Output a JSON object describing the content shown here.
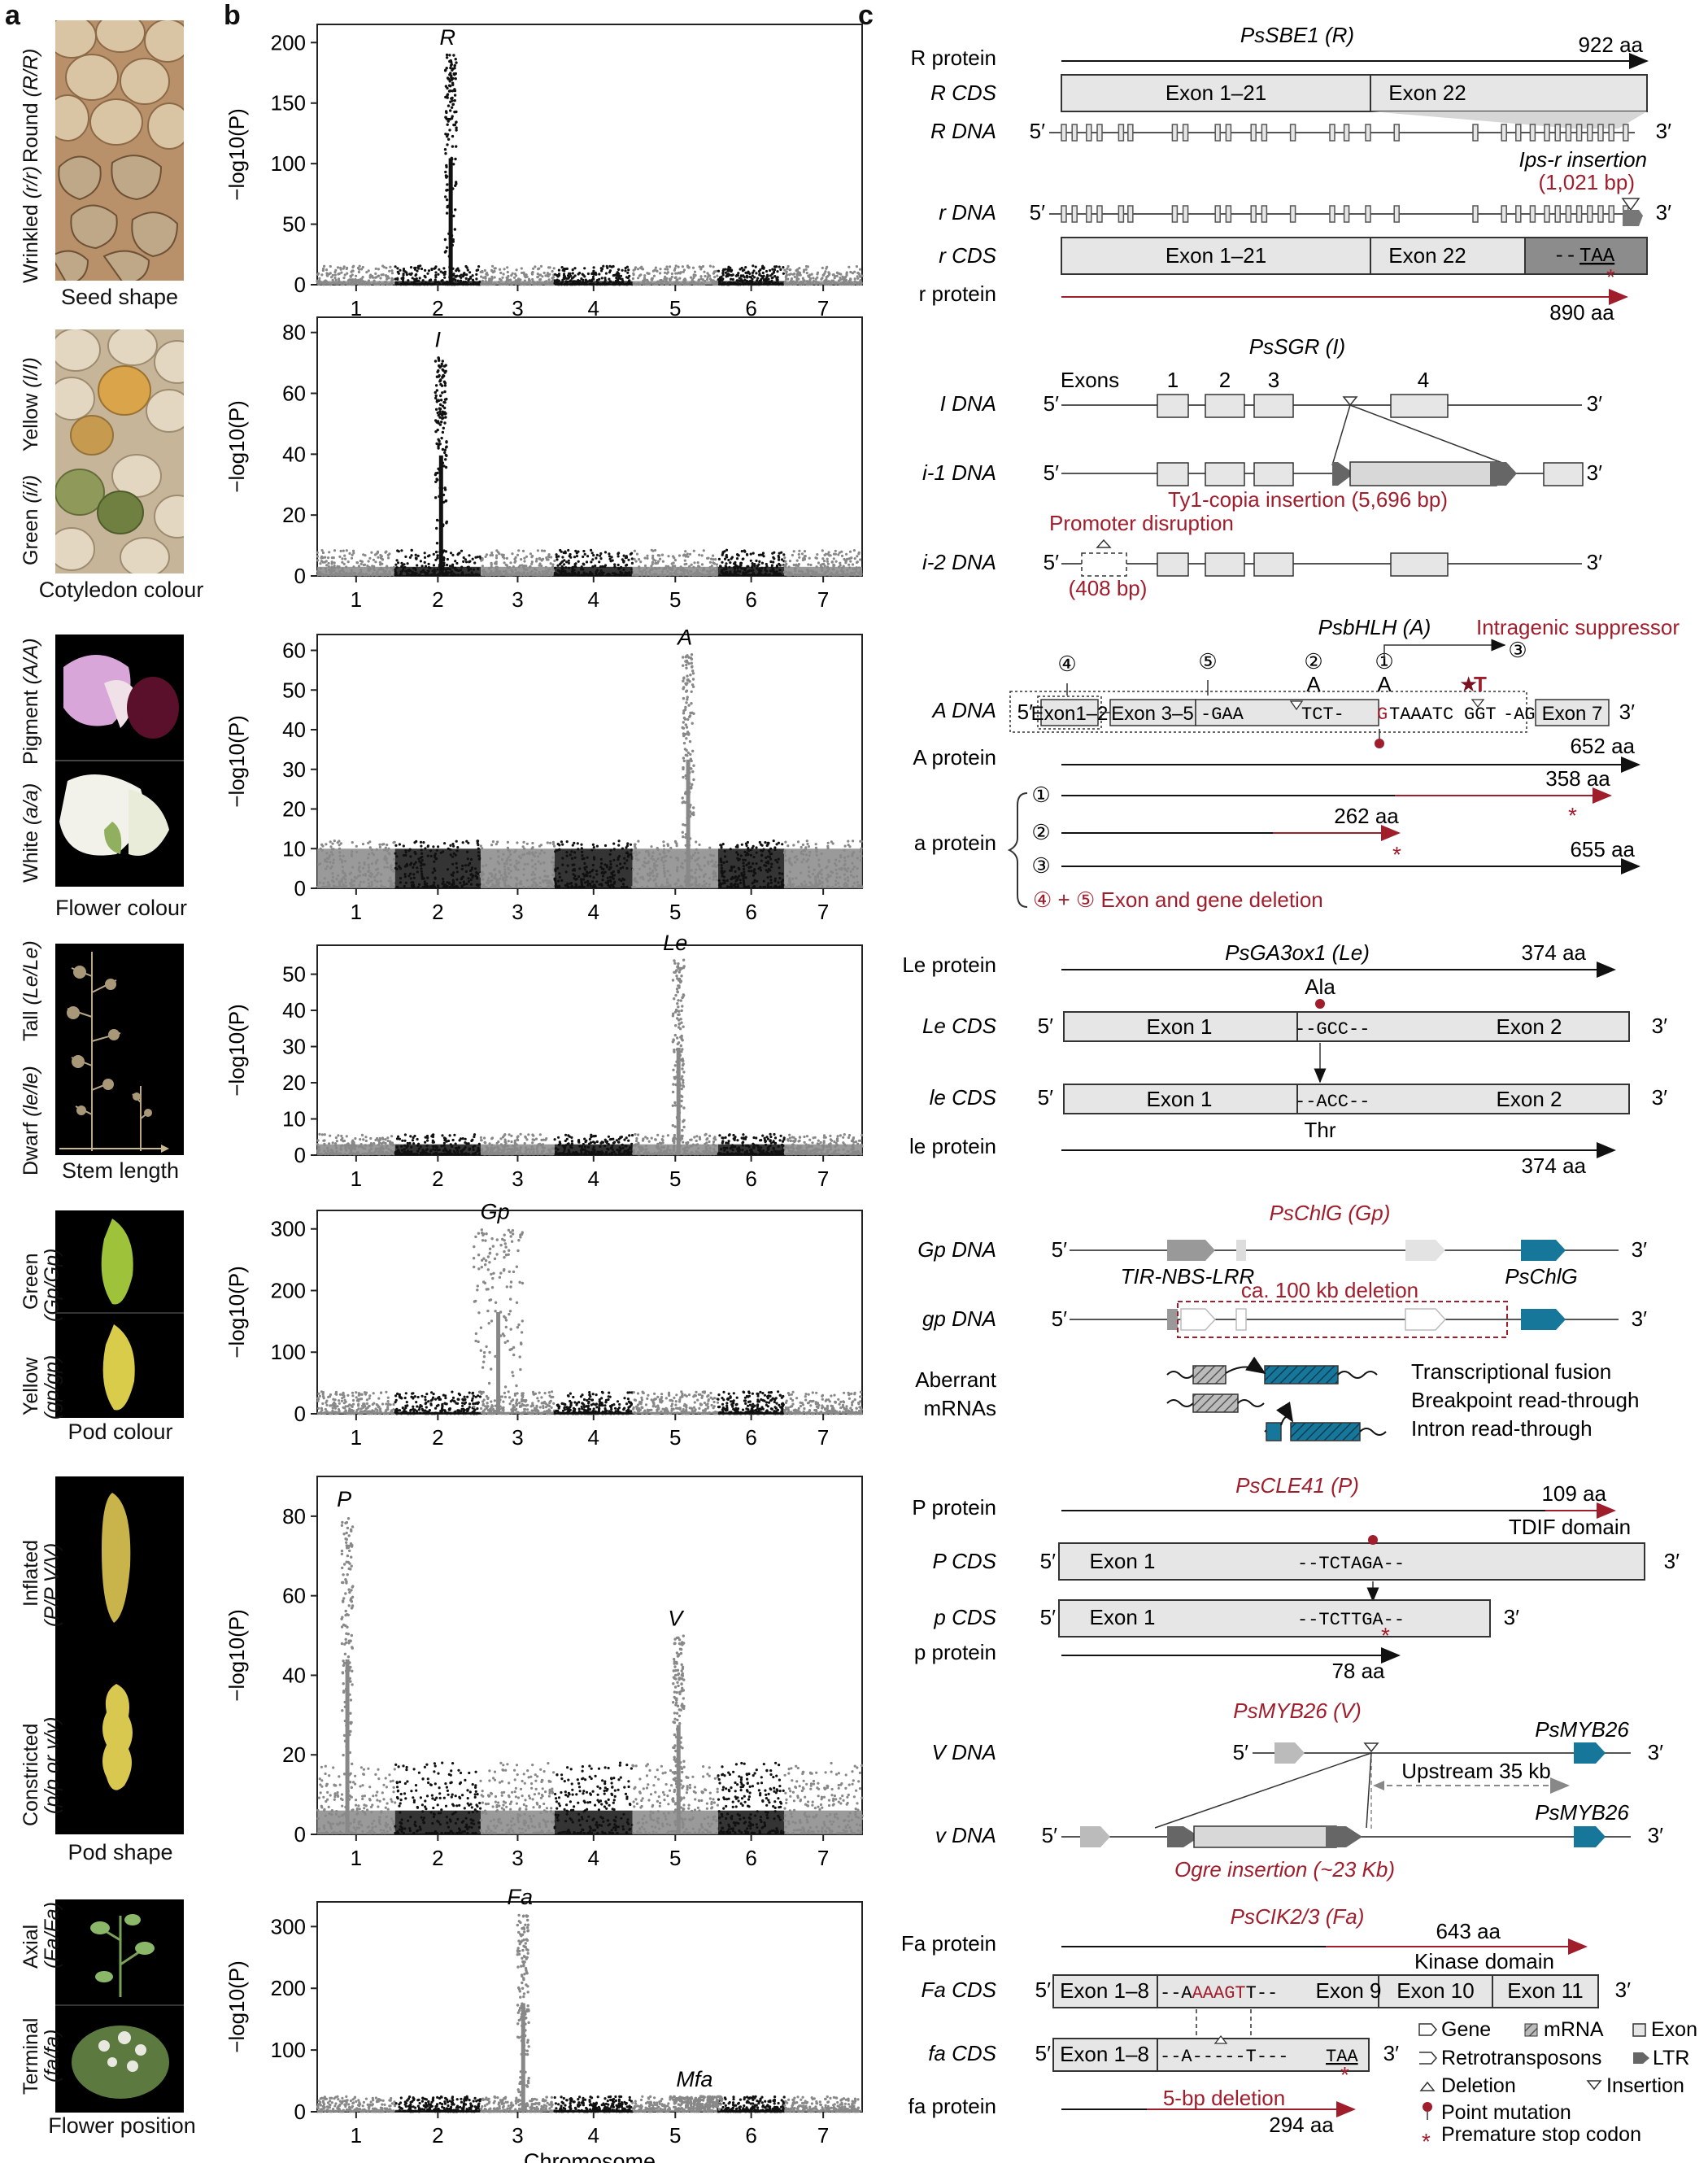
{
  "panel_letters": {
    "a": "a",
    "b": "b",
    "c": "c"
  },
  "traits": [
    {
      "top": "Round",
      "top_geno": "(R/R)",
      "bottom": "Wrinkled",
      "bottom_geno": "(r/r)",
      "caption": "Seed shape"
    },
    {
      "top": "Yellow",
      "top_geno": "(I/I)",
      "bottom": "Green",
      "bottom_geno": "(i/i)",
      "caption": "Cotyledon colour"
    },
    {
      "top": "Pigment",
      "top_geno": "(A/A)",
      "bottom": "White",
      "bottom_geno": "(a/a)",
      "caption": "Flower colour"
    },
    {
      "top": "Tall",
      "top_geno": "(Le/Le)",
      "bottom": "Dwarf",
      "bottom_geno": "(le/le)",
      "caption": "Stem length"
    },
    {
      "top": "Green",
      "top_geno": "(Gp/Gp)",
      "bottom": "Yellow",
      "bottom_geno": "(gp/gp)",
      "caption": "Pod colour"
    },
    {
      "top": "Inflated",
      "top_geno": "(P/P V/V)",
      "bottom": "Constricted",
      "bottom_geno": "(p/p or v/v)",
      "caption": "Pod shape"
    },
    {
      "top": "Axial",
      "top_geno": "(Fa/Fa)",
      "bottom": "Terminal",
      "bottom_geno": "(fa/fa)",
      "caption": "Flower position"
    }
  ],
  "chart_data": [
    {
      "type": "scatter",
      "ylabel": "−log10(P)",
      "ylim": [
        0,
        215
      ],
      "yticks": [
        0,
        50,
        100,
        150,
        200
      ],
      "xticks": [
        "1",
        "2",
        "3",
        "4",
        "5",
        "6",
        "7"
      ],
      "peaks": [
        {
          "label": "R",
          "chromosome": 2.6,
          "value": 190
        }
      ]
    },
    {
      "type": "scatter",
      "ylabel": "−log10(P)",
      "ylim": [
        0,
        85
      ],
      "yticks": [
        0,
        20,
        40,
        60,
        80
      ],
      "xticks": [
        "1",
        "2",
        "3",
        "4",
        "5",
        "6",
        "7"
      ],
      "peaks": [
        {
          "label": "I",
          "chromosome": 2.45,
          "value": 72
        }
      ]
    },
    {
      "type": "scatter",
      "ylabel": "−log10(P)",
      "ylim": [
        0,
        64
      ],
      "yticks": [
        0,
        10,
        20,
        30,
        40,
        50,
        60
      ],
      "xticks": [
        "1",
        "2",
        "3",
        "4",
        "5",
        "6",
        "7"
      ],
      "peaks": [
        {
          "label": "A",
          "chromosome": 5.6,
          "value": 59
        }
      ]
    },
    {
      "type": "scatter",
      "ylabel": "−log10(P)",
      "ylim": [
        0,
        58
      ],
      "yticks": [
        0,
        10,
        20,
        30,
        40,
        50
      ],
      "xticks": [
        "1",
        "2",
        "3",
        "4",
        "5",
        "6",
        "7"
      ],
      "peaks": [
        {
          "label": "Le",
          "chromosome": 5.45,
          "value": 54
        }
      ]
    },
    {
      "type": "scatter",
      "ylabel": "−log10(P)",
      "ylim": [
        0,
        330
      ],
      "yticks": [
        0,
        100,
        200,
        300
      ],
      "xticks": [
        "1",
        "2",
        "3",
        "4",
        "5",
        "6",
        "7"
      ],
      "peaks": [
        {
          "label": "Gp",
          "chromosome": 3.05,
          "value": 300
        }
      ]
    },
    {
      "type": "scatter",
      "ylabel": "−log10(P)",
      "ylim": [
        0,
        90
      ],
      "yticks": [
        0,
        20,
        40,
        60,
        80
      ],
      "xticks": [
        "1",
        "2",
        "3",
        "4",
        "5",
        "6",
        "7"
      ],
      "peaks": [
        {
          "label": "P",
          "chromosome": 1.25,
          "value": 80
        },
        {
          "label": "V",
          "chromosome": 5.45,
          "value": 50
        }
      ]
    },
    {
      "type": "scatter",
      "ylabel": "−log10(P)",
      "xlabel": "Chromosome",
      "ylim": [
        0,
        340
      ],
      "yticks": [
        0,
        100,
        200,
        300
      ],
      "xticks": [
        "1",
        "2",
        "3",
        "4",
        "5",
        "6",
        "7"
      ],
      "peaks": [
        {
          "label": "Fa",
          "chromosome": 3.5,
          "value": 320
        },
        {
          "label": "Mfa",
          "chromosome": 5.75,
          "value": 25
        }
      ]
    }
  ],
  "gene_panels": {
    "R": {
      "gene": "PsSBE1 (R)",
      "R_protein": "R protein",
      "R_cds": "R CDS",
      "R_dna": "R DNA",
      "r_dna": "r DNA",
      "r_cds": "r CDS",
      "r_protein": "r protein",
      "len_R": "922 aa",
      "len_r": "890 aa",
      "exon_a": "Exon 1–21",
      "exon_b": "Exon 22",
      "ins_label": "Ips-r insertion",
      "ins_size": "(1,021 bp)",
      "stop": "TAA",
      "dashes": "--"
    },
    "I": {
      "gene": "PsSGR (I)",
      "I_dna": "I DNA",
      "i1_dna": "i-1 DNA",
      "i2_dna": "i-2 DNA",
      "exons": "Exons",
      "n1": "1",
      "n2": "2",
      "n3": "3",
      "n4": "4",
      "ty1": "Ty1-copia insertion (5,696 bp)",
      "promoter": "Promoter disruption",
      "prom_size": "(408 bp)"
    },
    "A": {
      "gene": "PsbHLH (A)",
      "suppressor": "Intragenic suppressor",
      "a_dna": "A DNA",
      "A_protein": "A protein",
      "a_protein": "a protein",
      "len_A": "652 aa",
      "len1": "358 aa",
      "len2": "262 aa",
      "len3": "655 aa",
      "deletion": "Exon and gene deletion",
      "ex12": "Exon1–2",
      "ex35": "Exon 3–5",
      "ex7": "Exon 7",
      "seq1": "-GAA",
      "seq2": "TCT-",
      "seq3": "G",
      "seq4": "TAAATC",
      "seq5": "GGT",
      "seq6": "-AG",
      "A": "A",
      "T": "T",
      "c1": "①",
      "c2": "②",
      "c3": "③",
      "c4": "④",
      "c5": "⑤",
      "plus": "+"
    },
    "Le": {
      "gene": "PsGA3ox1 (Le)",
      "Le_protein": "Le protein",
      "Le_cds": "Le CDS",
      "le_cds": "le CDS",
      "le_protein": "le protein",
      "len": "374 aa",
      "ala": "Ala",
      "thr": "Thr",
      "exon1": "Exon 1",
      "exon2": "Exon 2",
      "gcc": "--GCC--",
      "acc": "--ACC--"
    },
    "Gp": {
      "gene": "PsChlG (Gp)",
      "Gp_dna": "Gp DNA",
      "gp_dna": "gp DNA",
      "tir": "TIR-NBS-LRR",
      "chlg": "PsChlG",
      "deletion": "ca. 100 kb deletion",
      "aberrant": "Aberrant",
      "mrnas": "mRNAs",
      "fusion": "Transcriptional fusion",
      "breakpoint": "Breakpoint read-through",
      "intron": "Intron read-through"
    },
    "P": {
      "gene": "PsCLE41 (P)",
      "P_protein": "P protein",
      "P_cds": "P CDS",
      "p_cds": "p CDS",
      "p_protein": "p protein",
      "len_P": "109 aa",
      "len_p": "78 aa",
      "tdif": "TDIF domain",
      "exon1": "Exon 1",
      "seqP": "--TCTAGA--",
      "seqp": "--TCTTGA--"
    },
    "V": {
      "gene": "PsMYB26 (V)",
      "V_dna": "V DNA",
      "v_dna": "v DNA",
      "myb": "PsMYB26",
      "upstream": "Upstream 35 kb",
      "ogre": "Ogre insertion (~23 Kb)"
    },
    "Fa": {
      "gene": "PsCIK2/3 (Fa)",
      "Fa_protein": "Fa protein",
      "Fa_cds": "Fa CDS",
      "fa_cds": "fa CDS",
      "fa_protein": "fa protein",
      "len_Fa": "643 aa",
      "len_fa": "294 aa",
      "kinase": "Kinase domain",
      "ex18": "Exon 1–8",
      "ex9": "Exon 9",
      "ex10": "Exon 10",
      "ex11": "Exon 11",
      "seqFa1": "--A",
      "seqFa2": "AAAGT",
      "seqFa3": "T--",
      "seqfa": "--A-----T---",
      "taa": "TAA",
      "del5": "5-bp deletion"
    },
    "legend": {
      "gene": "Gene",
      "mrna": "mRNA",
      "exon": "Exon",
      "retro": "Retrotransposons",
      "ltr": "LTR",
      "deletion": "Deletion",
      "insertion": "Insertion",
      "point": "Point mutation",
      "stop": "Premature stop codon"
    },
    "five": "5′",
    "three": "3′"
  },
  "colors": {
    "red": "#a01d2c",
    "blue": "#17779b",
    "grey": "#999999",
    "exon": "#e6e6e6"
  }
}
